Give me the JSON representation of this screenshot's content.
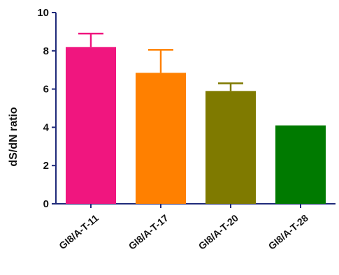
{
  "chart_data": {
    "type": "bar",
    "title": "",
    "xlabel": "",
    "ylabel": "dS/dN ratio",
    "ylim": [
      0,
      10
    ],
    "yticks": [
      0,
      2,
      4,
      6,
      8,
      10
    ],
    "categories": [
      "GI8/A-T-11",
      "GI8/A-T-17",
      "GI8/A-T-20",
      "GI8/A-T-28"
    ],
    "values": [
      8.2,
      6.85,
      5.9,
      4.1
    ],
    "error_upper": [
      0.7,
      1.2,
      0.4,
      0
    ],
    "colors": [
      "#f0167f",
      "#ff8000",
      "#7f7a00",
      "#007a00"
    ],
    "axis_color": "#1f2a7a",
    "grid": false,
    "legend": "none"
  }
}
